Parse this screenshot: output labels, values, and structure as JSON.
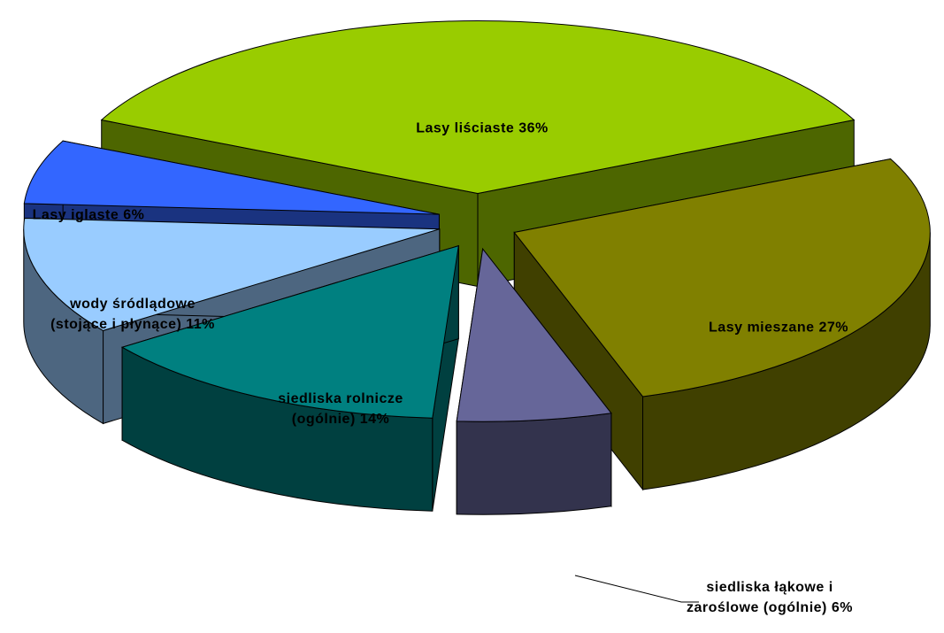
{
  "chart_data": {
    "type": "pie3d",
    "categories": [
      "Lasy liściaste",
      "Lasy mieszane",
      "siedliska łąkowe i zaroślowe (ogólnie)",
      "siedliska rolnicze (ogólnie)",
      "wody śródlądowe (stojące i płynące)",
      "Lasy iglaste"
    ],
    "values": [
      36,
      27,
      6,
      14,
      11,
      6
    ],
    "value_labels": [
      "36%",
      "27%",
      "6%",
      "14%",
      "11%",
      "6%"
    ],
    "colors": [
      "#99cc00",
      "#808000",
      "#666699",
      "#008080",
      "#99ccff",
      "#3366ff"
    ]
  }
}
